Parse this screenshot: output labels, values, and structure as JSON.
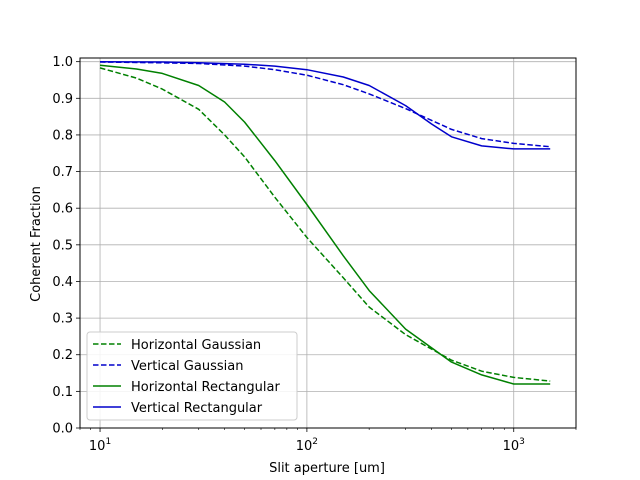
{
  "chart_data": {
    "type": "line",
    "title": "",
    "xlabel": "Slit aperture [um]",
    "ylabel": "Coherent Fraction",
    "xscale": "log",
    "xlim": [
      8,
      2000
    ],
    "ylim": [
      0,
      1.01
    ],
    "x_ticks": [
      {
        "value": 10,
        "base": "10",
        "exp": "1"
      },
      {
        "value": 100,
        "base": "10",
        "exp": "2"
      },
      {
        "value": 1000,
        "base": "10",
        "exp": "3"
      }
    ],
    "y_ticks": [
      "0.0",
      "0.1",
      "0.2",
      "0.3",
      "0.4",
      "0.5",
      "0.6",
      "0.7",
      "0.8",
      "0.9",
      "1.0"
    ],
    "grid": true,
    "legend_position": "lower-left",
    "series": [
      {
        "name": "Horizontal Gaussian",
        "color": "#008000",
        "dash": "dashed",
        "x": [
          10,
          15,
          20,
          30,
          40,
          50,
          70,
          100,
          150,
          200,
          300,
          500,
          700,
          1000,
          1500
        ],
        "y": [
          0.983,
          0.955,
          0.925,
          0.87,
          0.8,
          0.74,
          0.63,
          0.52,
          0.41,
          0.33,
          0.255,
          0.185,
          0.155,
          0.138,
          0.128
        ]
      },
      {
        "name": "Vertical Gaussian",
        "color": "#0000cc",
        "dash": "dashed",
        "x": [
          10,
          20,
          30,
          50,
          70,
          100,
          150,
          200,
          300,
          400,
          500,
          700,
          1000,
          1500
        ],
        "y": [
          0.999,
          0.997,
          0.995,
          0.988,
          0.978,
          0.963,
          0.937,
          0.912,
          0.872,
          0.84,
          0.815,
          0.79,
          0.777,
          0.768
        ]
      },
      {
        "name": "Horizontal Rectangular",
        "color": "#008000",
        "dash": "solid",
        "x": [
          10,
          15,
          20,
          30,
          40,
          50,
          70,
          100,
          150,
          200,
          300,
          500,
          700,
          1000,
          1500
        ],
        "y": [
          0.99,
          0.98,
          0.968,
          0.935,
          0.89,
          0.835,
          0.73,
          0.61,
          0.47,
          0.375,
          0.27,
          0.18,
          0.145,
          0.12,
          0.12
        ]
      },
      {
        "name": "Vertical Rectangular",
        "color": "#0000cc",
        "dash": "solid",
        "x": [
          10,
          20,
          30,
          50,
          70,
          100,
          150,
          200,
          300,
          400,
          500,
          700,
          1000,
          1500
        ],
        "y": [
          1.0,
          0.999,
          0.997,
          0.993,
          0.988,
          0.978,
          0.958,
          0.935,
          0.88,
          0.83,
          0.795,
          0.77,
          0.762,
          0.762
        ]
      }
    ]
  }
}
